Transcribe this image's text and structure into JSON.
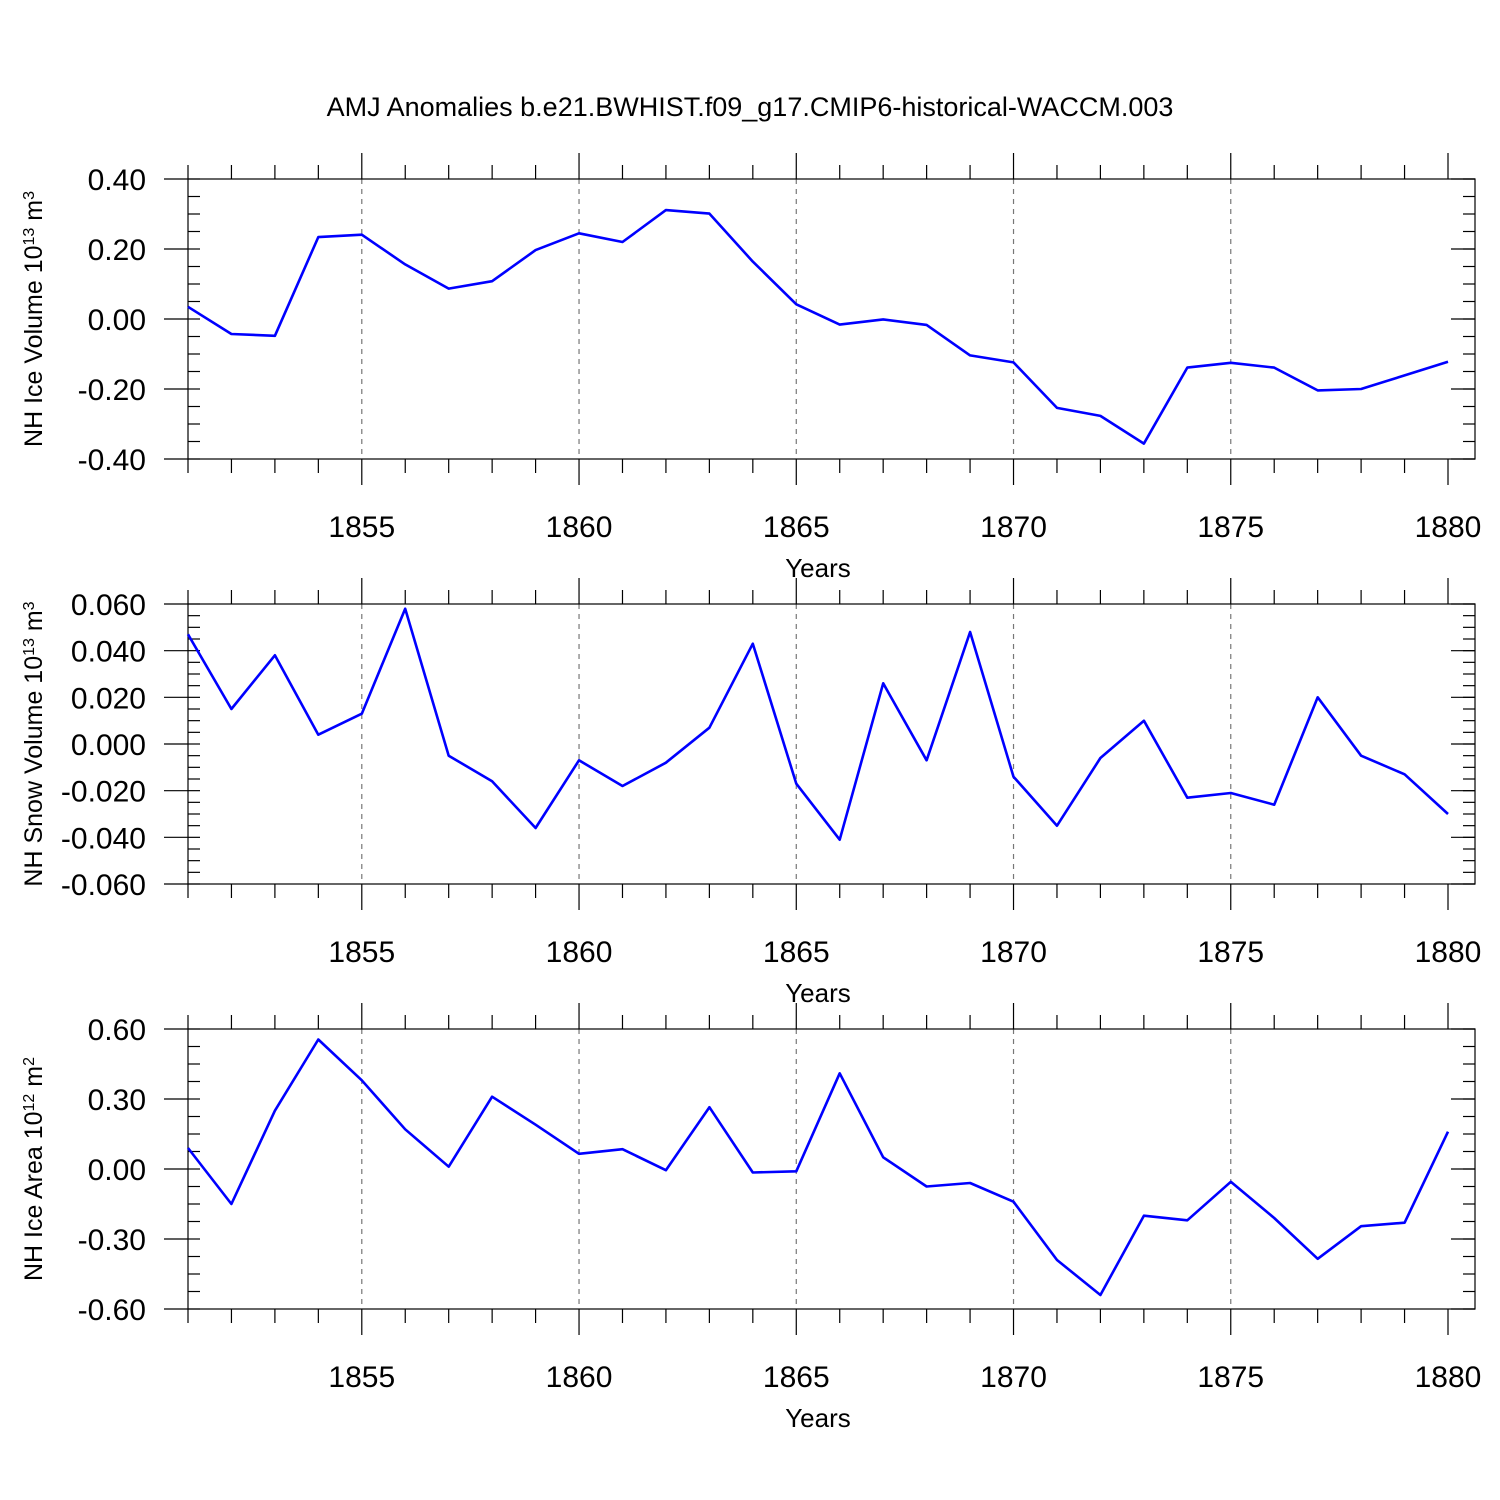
{
  "title": "AMJ Anomalies b.e21.BWHIST.f09_g17.CMIP6-historical-WACCM.003",
  "colors": {
    "series": "#0000ff",
    "axis": "#000000",
    "grid": "#777777"
  },
  "chart_data": [
    {
      "type": "line",
      "ylabel": {
        "main": "NH Ice Volume 10",
        "sup1": "13",
        "mid": " m",
        "sup2": "3"
      },
      "xlabel": "Years",
      "xlim": [
        1851,
        1880
      ],
      "ylim": [
        -0.4,
        0.4
      ],
      "x_ticks": [
        1855,
        1860,
        1865,
        1870,
        1875,
        1880
      ],
      "y_ticks": [
        -0.4,
        -0.2,
        0.0,
        0.2,
        0.4
      ],
      "y_tick_labels": [
        "-0.40",
        "-0.20",
        "0.00",
        "0.20",
        "0.40"
      ],
      "y_minor_step": 0.05,
      "x": [
        1851,
        1852,
        1853,
        1854,
        1855,
        1856,
        1857,
        1858,
        1859,
        1860,
        1861,
        1862,
        1863,
        1864,
        1865,
        1866,
        1867,
        1868,
        1869,
        1870,
        1871,
        1872,
        1873,
        1874,
        1875,
        1876,
        1877,
        1878,
        1879,
        1880
      ],
      "values": [
        0.035,
        -0.043,
        -0.048,
        0.234,
        0.241,
        0.156,
        0.087,
        0.108,
        0.197,
        0.245,
        0.22,
        0.311,
        0.301,
        0.164,
        0.042,
        -0.016,
        -0.001,
        -0.017,
        -0.104,
        -0.124,
        -0.254,
        -0.277,
        -0.356,
        -0.139,
        -0.125,
        -0.139,
        -0.204,
        -0.2,
        -0.161,
        -0.122
      ]
    },
    {
      "type": "line",
      "ylabel": {
        "main": "NH Snow Volume 10",
        "sup1": "13",
        "mid": " m",
        "sup2": "3"
      },
      "xlabel": "Years",
      "xlim": [
        1851,
        1880
      ],
      "ylim": [
        -0.06,
        0.06
      ],
      "x_ticks": [
        1855,
        1860,
        1865,
        1870,
        1875,
        1880
      ],
      "y_ticks": [
        -0.06,
        -0.04,
        -0.02,
        0.0,
        0.02,
        0.04,
        0.06
      ],
      "y_tick_labels": [
        "-0.060",
        "-0.040",
        "-0.020",
        "0.000",
        "0.020",
        "0.040",
        "0.060"
      ],
      "y_minor_step": 0.005,
      "x": [
        1851,
        1852,
        1853,
        1854,
        1855,
        1856,
        1857,
        1858,
        1859,
        1860,
        1861,
        1862,
        1863,
        1864,
        1865,
        1866,
        1867,
        1868,
        1869,
        1870,
        1871,
        1872,
        1873,
        1874,
        1875,
        1876,
        1877,
        1878,
        1879,
        1880
      ],
      "values": [
        0.047,
        0.015,
        0.038,
        0.004,
        0.013,
        0.058,
        -0.005,
        -0.016,
        -0.036,
        -0.007,
        -0.018,
        -0.008,
        0.007,
        0.043,
        -0.017,
        -0.041,
        0.026,
        -0.007,
        0.048,
        -0.014,
        -0.035,
        -0.006,
        0.01,
        -0.023,
        -0.021,
        -0.026,
        0.02,
        -0.005,
        -0.013,
        -0.03
      ]
    },
    {
      "type": "line",
      "ylabel": {
        "main": "NH Ice Area 10",
        "sup1": "12",
        "mid": " m",
        "sup2": "2"
      },
      "xlabel": "Years",
      "xlim": [
        1851,
        1880
      ],
      "ylim": [
        -0.6,
        0.6
      ],
      "x_ticks": [
        1855,
        1860,
        1865,
        1870,
        1875,
        1880
      ],
      "y_ticks": [
        -0.6,
        -0.3,
        0.0,
        0.3,
        0.6
      ],
      "y_tick_labels": [
        "-0.60",
        "-0.30",
        "0.00",
        "0.30",
        "0.60"
      ],
      "y_minor_step": 0.075,
      "x": [
        1851,
        1852,
        1853,
        1854,
        1855,
        1856,
        1857,
        1858,
        1859,
        1860,
        1861,
        1862,
        1863,
        1864,
        1865,
        1866,
        1867,
        1868,
        1869,
        1870,
        1871,
        1872,
        1873,
        1874,
        1875,
        1876,
        1877,
        1878,
        1879,
        1880
      ],
      "values": [
        0.09,
        -0.15,
        0.25,
        0.555,
        0.38,
        0.17,
        0.01,
        0.31,
        0.19,
        0.065,
        0.085,
        -0.005,
        0.265,
        -0.015,
        -0.01,
        0.41,
        0.05,
        -0.075,
        -0.06,
        -0.14,
        -0.39,
        -0.54,
        -0.2,
        -0.22,
        -0.055,
        -0.21,
        -0.385,
        -0.245,
        -0.23,
        0.16
      ]
    }
  ]
}
